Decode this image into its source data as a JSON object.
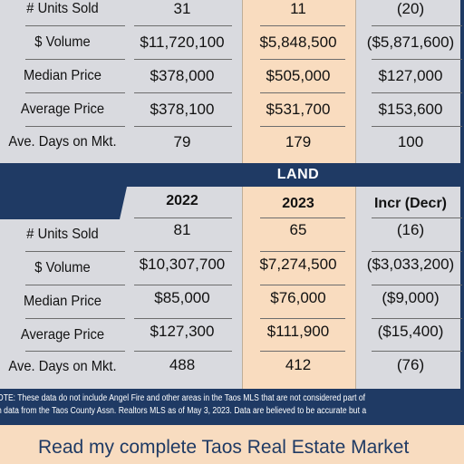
{
  "top_table": {
    "rows": [
      {
        "label": "# Units Sold",
        "y2022": "31",
        "y2023": "11",
        "change": "(20)"
      },
      {
        "label": "$ Volume",
        "y2022": "$11,720,100",
        "y2023": "$5,848,500",
        "change": "($5,871,600)"
      },
      {
        "label": "Median Price",
        "y2022": "$378,000",
        "y2023": "$505,000",
        "change": "$127,000"
      },
      {
        "label": "Average Price",
        "y2022": "$378,100",
        "y2023": "$531,700",
        "change": "$153,600"
      },
      {
        "label": "Ave. Days on Mkt.",
        "y2022": "79",
        "y2023": "179",
        "change": "100"
      }
    ]
  },
  "land": {
    "section_title": "LAND",
    "headers": {
      "col1": "2022",
      "col2": "2023",
      "col3": "Incr (Decr)"
    },
    "rows": [
      {
        "label": "# Units Sold",
        "y2022": "81",
        "y2023": "65",
        "change": "(16)"
      },
      {
        "label": "$ Volume",
        "y2022": "$10,307,700",
        "y2023": "$7,274,500",
        "change": "($3,033,200)"
      },
      {
        "label": "Median Price",
        "y2022": "$85,000",
        "y2023": "$76,000",
        "change": "($9,000)"
      },
      {
        "label": "Average Price",
        "y2022": "$127,300",
        "y2023": "$111,900",
        "change": "($15,400)"
      },
      {
        "label": "Ave. Days on Mkt.",
        "y2022": "488",
        "y2023": "412",
        "change": "(76)"
      }
    ]
  },
  "note": {
    "line1": "OTE:  These data do not include Angel Fire and other areas in the Taos MLS that are not considered part of",
    "line2": "n data from the Taos County Assn. Realtors MLS as of May 3, 2023. Data are believed to be accurate but a"
  },
  "footer": {
    "link_text": "Read my complete Taos Real Estate Market"
  },
  "colors": {
    "navy": "#1f3a64",
    "peach": "#f9dcbf",
    "panel": "#d9dadf"
  }
}
